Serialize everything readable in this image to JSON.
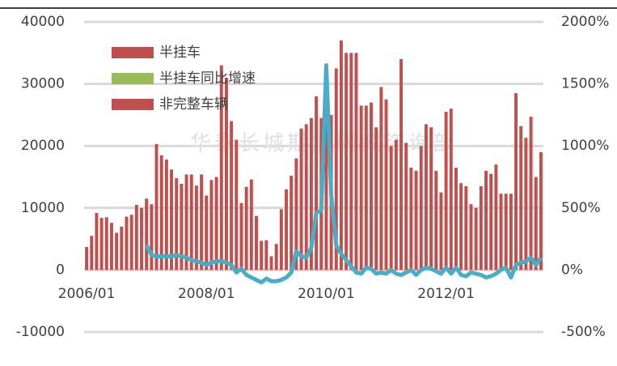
{
  "chart_data": {
    "type": "bar_line",
    "watermark": "华泰长城期货研究咨询部",
    "categories": [
      "2006/01",
      null,
      null,
      null,
      null,
      null,
      null,
      null,
      null,
      null,
      null,
      null,
      null,
      null,
      null,
      null,
      null,
      null,
      null,
      null,
      null,
      null,
      null,
      null,
      "2008/01",
      null,
      null,
      null,
      null,
      null,
      null,
      null,
      null,
      null,
      null,
      null,
      null,
      null,
      null,
      null,
      null,
      null,
      null,
      null,
      null,
      null,
      null,
      null,
      "2010/01",
      null,
      null,
      null,
      null,
      null,
      null,
      null,
      null,
      null,
      null,
      null,
      null,
      null,
      null,
      null,
      null,
      null,
      null,
      null,
      null,
      null,
      null,
      null,
      "2012/01",
      null,
      null,
      null,
      null,
      null,
      null,
      null,
      null,
      null,
      null,
      null,
      null,
      null,
      null,
      null,
      null,
      null,
      null,
      null
    ],
    "series": [
      {
        "name": "半挂车",
        "color": "#c0504d",
        "values": [
          3700,
          5500,
          9200,
          8400,
          8500,
          7600,
          6000,
          7000,
          8600,
          8900,
          10500,
          10000,
          11500,
          10600,
          20300,
          18500,
          17800,
          16200,
          14800,
          13900,
          15400,
          15400,
          13600,
          15400,
          12000,
          14500,
          15000,
          33000,
          31000,
          24000,
          21000,
          10800,
          13400,
          14600,
          8700,
          4700,
          4800,
          2200,
          4200,
          9800,
          13000,
          15200,
          18000,
          22800,
          23500,
          24500,
          28000,
          24500,
          26000,
          25000,
          32500,
          37000,
          35000,
          35000,
          35000,
          26500,
          26500,
          27000,
          23000,
          29500,
          27500,
          20000,
          21000,
          34000,
          20500,
          16500,
          16000,
          20000,
          23500,
          23000,
          16000,
          12500,
          25500,
          26000,
          16500,
          14000,
          13500,
          10600,
          10000,
          13500,
          16000,
          15500,
          17000,
          12300,
          12300,
          12300,
          28500,
          23200,
          21300,
          24700,
          15000,
          19000
        ]
      },
      {
        "name": "半挂车同比增速",
        "color": "#9bbb59",
        "line_color": "#4bacc6",
        "axis": "y2",
        "values": [
          null,
          null,
          null,
          null,
          null,
          null,
          null,
          null,
          null,
          null,
          null,
          null,
          200,
          120,
          110,
          110,
          110,
          110,
          120,
          110,
          100,
          80,
          70,
          60,
          40,
          60,
          70,
          70,
          60,
          40,
          -20,
          10,
          -40,
          -60,
          -80,
          -100,
          -70,
          -90,
          -90,
          -80,
          -60,
          -20,
          150,
          110,
          100,
          180,
          460,
          480,
          1650,
          600,
          200,
          130,
          80,
          30,
          -20,
          -30,
          20,
          10,
          -30,
          -20,
          -30,
          0,
          -30,
          -40,
          -20,
          0,
          -40,
          0,
          20,
          10,
          -10,
          -30,
          20,
          -30,
          20,
          -40,
          -50,
          -20,
          -30,
          -40,
          -60,
          -50,
          -30,
          0,
          20,
          -60,
          40,
          60,
          70,
          100,
          40,
          100
        ]
      },
      {
        "name": "非完整车辆",
        "color": "#c0504d"
      }
    ],
    "ylim": [
      -10000,
      40000
    ],
    "yticks": [
      -10000,
      0,
      10000,
      20000,
      30000,
      40000
    ],
    "y2lim": [
      -500,
      2000
    ],
    "y2ticks": [
      {
        "value": -500,
        "label": "-500%"
      },
      {
        "value": 0,
        "label": "0%"
      },
      {
        "value": 500,
        "label": "500%"
      },
      {
        "value": 1000,
        "label": "1000%"
      },
      {
        "value": 1500,
        "label": "1500%"
      },
      {
        "value": 2000,
        "label": "2000%"
      }
    ],
    "grid": true
  }
}
